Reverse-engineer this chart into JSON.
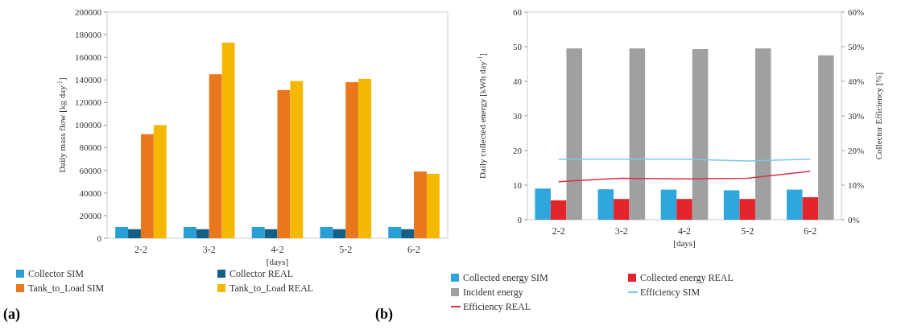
{
  "chart_data": [
    {
      "type": "bar",
      "ylabel": "Daily mass flow [kg day$^{-1}$]",
      "xlabel": "[days]",
      "categories": [
        "2-2",
        "3-2",
        "4-2",
        "5-2",
        "6-2"
      ],
      "ylim": [
        0,
        200000
      ],
      "yticks": [
        0,
        20000,
        40000,
        60000,
        80000,
        100000,
        120000,
        140000,
        160000,
        180000,
        200000
      ],
      "legend": "bottom",
      "grid": false,
      "annotations": [
        "(a)"
      ],
      "series": [
        {
          "name": "Collector SIM",
          "color": "#2a9fd6",
          "values": [
            10000,
            10000,
            10000,
            10000,
            10000
          ]
        },
        {
          "name": "Collector REAL",
          "color": "#155f86",
          "values": [
            8000,
            8000,
            8000,
            8000,
            8000
          ]
        },
        {
          "name": "Tank_to_Load SIM",
          "color": "#e8771e",
          "values": [
            92000,
            145000,
            131000,
            138000,
            59000
          ]
        },
        {
          "name": "Tank_to_Load REAL",
          "color": "#f5b800",
          "values": [
            100000,
            173000,
            139000,
            141000,
            57000
          ]
        }
      ]
    },
    {
      "type": "bar",
      "ylabel": "Daily collected energy [kWh day$^{-1}$]",
      "y2label": "Collector Efficiency [%]",
      "xlabel": "[days]",
      "categories": [
        "2-2",
        "3-2",
        "4-2",
        "5-2",
        "6-2"
      ],
      "ylim": [
        0,
        60
      ],
      "yticks": [
        0,
        10,
        20,
        30,
        40,
        50,
        60
      ],
      "y2lim": [
        0,
        0.6
      ],
      "y2ticks": [
        {
          "value": 0,
          "label": "0%"
        },
        {
          "value": 0.1,
          "label": "10%"
        },
        {
          "value": 0.2,
          "label": "20%"
        },
        {
          "value": 0.3,
          "label": "30%"
        },
        {
          "value": 0.4,
          "label": "40%"
        },
        {
          "value": 0.5,
          "label": "50%"
        },
        {
          "value": 0.6,
          "label": "60%"
        }
      ],
      "legend": "bottom",
      "grid": false,
      "annotations": [
        "(b)"
      ],
      "series": [
        {
          "name": "Collected energy SIM",
          "color": "#2fa6dc",
          "values": [
            9,
            8.8,
            8.7,
            8.5,
            8.7
          ]
        },
        {
          "name": "Collected energy REAL",
          "color": "#e3242b",
          "values": [
            5.6,
            6,
            6,
            6,
            6.5
          ]
        },
        {
          "name": "Incident energy",
          "color": "#a0a0a0",
          "values": [
            49.5,
            49.5,
            49.3,
            49.5,
            47.5
          ]
        },
        {
          "name": "Efficiency SIM",
          "type": "line",
          "axis": "y2",
          "color": "#7dc8e6",
          "values": [
            0.175,
            0.175,
            0.175,
            0.17,
            0.175
          ]
        },
        {
          "name": "Efficiency REAL",
          "type": "line",
          "axis": "y2",
          "color": "#d9304a",
          "values": [
            0.11,
            0.12,
            0.118,
            0.12,
            0.14
          ]
        }
      ]
    }
  ]
}
